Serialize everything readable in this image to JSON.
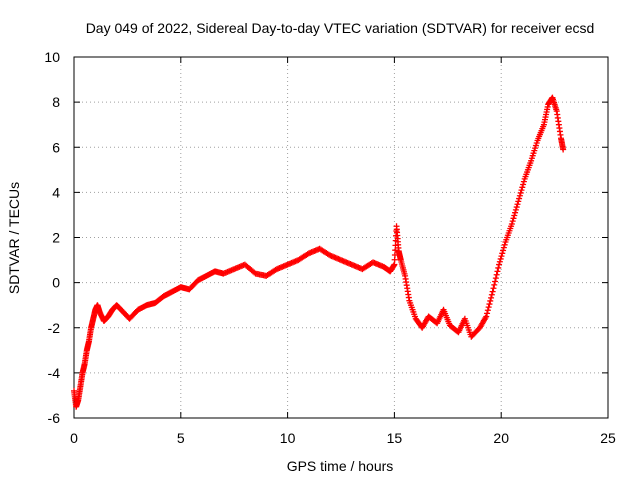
{
  "chart_data": {
    "type": "scatter",
    "title": "Day 049 of 2022, Sidereal Day-to-day VTEC variation (SDTVAR) for receiver ecsd",
    "xlabel": "GPS time / hours",
    "ylabel": "SDTVAR / TECUs",
    "xlim": [
      0,
      25
    ],
    "ylim": [
      -6,
      10
    ],
    "xticks": [
      "0",
      "5",
      "10",
      "15",
      "20",
      "25"
    ],
    "yticks": [
      "-6",
      "-4",
      "-2",
      "0",
      "2",
      "4",
      "6",
      "8",
      "10"
    ],
    "grid": true,
    "marker": "plus",
    "series": [
      {
        "name": "SDTVAR",
        "color": "#ff0000",
        "x": [
          0.0,
          0.1,
          0.2,
          0.3,
          0.4,
          0.5,
          0.6,
          0.7,
          0.8,
          0.9,
          1.0,
          1.1,
          1.2,
          1.4,
          1.6,
          1.8,
          2.0,
          2.3,
          2.6,
          3.0,
          3.4,
          3.8,
          4.2,
          4.6,
          5.0,
          5.4,
          5.8,
          6.2,
          6.6,
          7.0,
          7.5,
          8.0,
          8.5,
          9.0,
          9.5,
          10.0,
          10.5,
          11.0,
          11.5,
          12.0,
          12.5,
          13.0,
          13.5,
          14.0,
          14.5,
          14.8,
          15.0,
          15.1,
          15.2,
          15.3,
          15.5,
          15.7,
          16.0,
          16.3,
          16.6,
          17.0,
          17.3,
          17.6,
          18.0,
          18.3,
          18.6,
          19.0,
          19.3,
          19.6,
          19.9,
          20.2,
          20.5,
          20.8,
          21.1,
          21.4,
          21.7,
          22.0,
          22.2,
          22.4,
          22.6,
          22.8,
          22.9
        ],
        "y": [
          -4.8,
          -5.5,
          -5.2,
          -4.6,
          -4.0,
          -3.6,
          -3.0,
          -2.6,
          -2.0,
          -1.6,
          -1.2,
          -1.0,
          -1.3,
          -1.7,
          -1.5,
          -1.2,
          -1.0,
          -1.3,
          -1.6,
          -1.2,
          -1.0,
          -0.9,
          -0.6,
          -0.4,
          -0.2,
          -0.3,
          0.1,
          0.3,
          0.5,
          0.4,
          0.6,
          0.8,
          0.4,
          0.3,
          0.6,
          0.8,
          1.0,
          1.3,
          1.5,
          1.2,
          1.0,
          0.8,
          0.6,
          0.9,
          0.7,
          0.5,
          0.8,
          2.5,
          1.4,
          1.0,
          0.3,
          -0.8,
          -1.6,
          -2.0,
          -1.5,
          -1.8,
          -1.2,
          -1.9,
          -2.2,
          -1.6,
          -2.4,
          -2.0,
          -1.5,
          -0.4,
          0.8,
          1.8,
          2.6,
          3.6,
          4.6,
          5.4,
          6.3,
          7.0,
          7.9,
          8.2,
          7.6,
          6.4,
          5.9
        ]
      }
    ]
  }
}
